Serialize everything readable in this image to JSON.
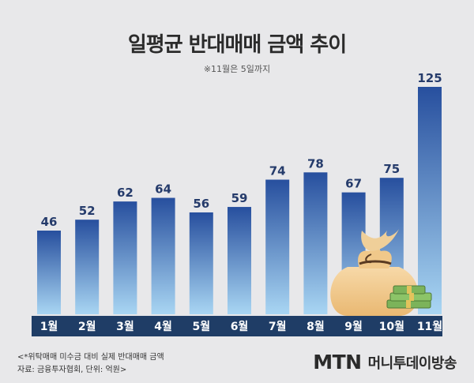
{
  "title": "일평균 반대매매 금액 추이",
  "subtitle": "※11월은 5일까지",
  "notes": {
    "line1": "<*위탁매매 미수금 대비 실제 반대매매 금액",
    "line2": "자료: 금융투자협회, 단위: 억원>"
  },
  "logo": {
    "mtn": "MTN",
    "korean": "머니투데이방송"
  },
  "colors": {
    "bar_top": "#274f9e",
    "bar_bottom": "#a9d6f3",
    "label": "#253b6b",
    "strip": "#1f3d66",
    "month_text": "#ffffff"
  },
  "chart_data": {
    "type": "bar",
    "title": "일평균 반대매매 금액 추이",
    "categories": [
      "1월",
      "2월",
      "3월",
      "4월",
      "5월",
      "6월",
      "7월",
      "8월",
      "9월",
      "10월",
      "11월"
    ],
    "values": [
      46,
      52,
      62,
      64,
      56,
      59,
      74,
      78,
      67,
      75,
      125
    ],
    "ylim": [
      0,
      125
    ],
    "grid": false,
    "legend": "none",
    "data_labels": true
  }
}
